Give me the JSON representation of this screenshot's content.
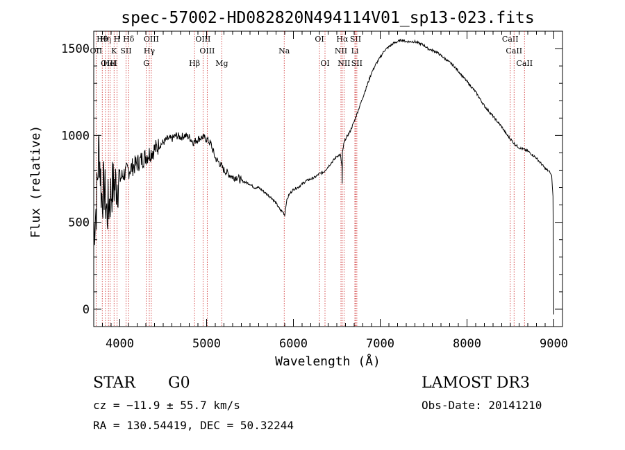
{
  "chart_data": {
    "type": "line",
    "title": "spec-57002-HD082820N494114V01_sp13-023.fits",
    "xlabel": "Wavelength (Å)",
    "ylabel": "Flux (relative)",
    "xlim": [
      3700,
      9100
    ],
    "ylim": [
      -100,
      1600
    ],
    "xticks": [
      4000,
      5000,
      6000,
      7000,
      8000,
      9000
    ],
    "yticks": [
      0,
      500,
      1000,
      1500
    ],
    "series": [
      {
        "name": "flux",
        "x": [
          3700,
          3730,
          3760,
          3790,
          3820,
          3850,
          3880,
          3910,
          3950,
          4000,
          4050,
          4100,
          4150,
          4200,
          4250,
          4300,
          4350,
          4400,
          4450,
          4500,
          4550,
          4600,
          4650,
          4700,
          4750,
          4800,
          4850,
          4900,
          4950,
          5000,
          5050,
          5100,
          5150,
          5200,
          5250,
          5300,
          5350,
          5400,
          5450,
          5500,
          5550,
          5600,
          5650,
          5700,
          5750,
          5800,
          5850,
          5880,
          5900,
          5920,
          5950,
          6000,
          6050,
          6100,
          6150,
          6200,
          6250,
          6300,
          6350,
          6400,
          6450,
          6500,
          6540,
          6560,
          6562,
          6565,
          6580,
          6600,
          6650,
          6700,
          6750,
          6800,
          6850,
          6900,
          6950,
          7000,
          7050,
          7100,
          7150,
          7200,
          7250,
          7300,
          7350,
          7400,
          7450,
          7500,
          7550,
          7600,
          7650,
          7700,
          7750,
          7800,
          7850,
          7900,
          7950,
          8000,
          8050,
          8100,
          8150,
          8200,
          8250,
          8300,
          8350,
          8400,
          8450,
          8500,
          8550,
          8600,
          8650,
          8700,
          8750,
          8800,
          8850,
          8900,
          8950,
          8975,
          8990,
          9000
        ],
        "y": [
          450,
          600,
          950,
          650,
          700,
          550,
          620,
          700,
          720,
          750,
          780,
          800,
          820,
          840,
          860,
          880,
          900,
          920,
          940,
          960,
          980,
          980,
          1000,
          990,
          1000,
          990,
          960,
          980,
          990,
          980,
          950,
          870,
          840,
          800,
          780,
          760,
          760,
          740,
          730,
          720,
          700,
          700,
          680,
          660,
          640,
          610,
          570,
          560,
          540,
          620,
          660,
          690,
          700,
          720,
          740,
          750,
          760,
          780,
          790,
          820,
          850,
          880,
          890,
          820,
          720,
          900,
          950,
          980,
          1020,
          1080,
          1150,
          1220,
          1290,
          1360,
          1410,
          1450,
          1490,
          1510,
          1530,
          1540,
          1550,
          1540,
          1540,
          1540,
          1530,
          1520,
          1500,
          1490,
          1480,
          1460,
          1440,
          1420,
          1400,
          1370,
          1340,
          1310,
          1280,
          1250,
          1210,
          1170,
          1140,
          1110,
          1080,
          1050,
          1010,
          980,
          950,
          930,
          920,
          910,
          890,
          870,
          840,
          810,
          790,
          770,
          650,
          -30
        ]
      }
    ],
    "lines": [
      {
        "name": "Hθ",
        "wavelength": 3798
      },
      {
        "name": "OII",
        "wavelength": 3727
      },
      {
        "name": "OIII",
        "wavelength": 3869
      },
      {
        "name": "Hη",
        "wavelength": 3835
      },
      {
        "name": "K",
        "wavelength": 3934
      },
      {
        "name": "HeI",
        "wavelength": 3889
      },
      {
        "name": "H",
        "wavelength": 3968
      },
      {
        "name": "SII",
        "wavelength": 4072
      },
      {
        "name": "Hδ",
        "wavelength": 4102
      },
      {
        "name": "OIII",
        "wavelength": 4363
      },
      {
        "name": "Hγ",
        "wavelength": 4340
      },
      {
        "name": "G",
        "wavelength": 4305
      },
      {
        "name": "Hβ",
        "wavelength": 4861
      },
      {
        "name": "OIII",
        "wavelength": 4959
      },
      {
        "name": "OIII",
        "wavelength": 5007
      },
      {
        "name": "Mg",
        "wavelength": 5175
      },
      {
        "name": "Na",
        "wavelength": 5894
      },
      {
        "name": "OI",
        "wavelength": 6300
      },
      {
        "name": "OI",
        "wavelength": 6364
      },
      {
        "name": "Hα",
        "wavelength": 6563
      },
      {
        "name": "NII",
        "wavelength": 6548
      },
      {
        "name": "NII",
        "wavelength": 6583
      },
      {
        "name": "SII",
        "wavelength": 6716
      },
      {
        "name": "Li",
        "wavelength": 6708
      },
      {
        "name": "SII",
        "wavelength": 6731
      },
      {
        "name": "CaII",
        "wavelength": 8498
      },
      {
        "name": "CaII",
        "wavelength": 8542
      },
      {
        "name": "CaII",
        "wavelength": 8662
      }
    ]
  },
  "info": {
    "class": "STAR",
    "subclass": "G0",
    "survey": "LAMOST DR3",
    "cz": "cz = −11.9 ± 55.7 km/s",
    "obs_date": "Obs-Date: 20141210",
    "radec": "RA = 130.54419, DEC =  50.32244"
  },
  "colors": {
    "spectrum": "#000000",
    "line_marker": "#cc2222",
    "axes": "#000000"
  }
}
